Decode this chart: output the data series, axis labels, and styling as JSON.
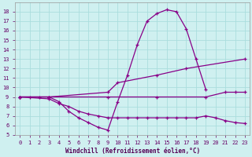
{
  "bg_color": "#cff0f0",
  "grid_color": "#aadddd",
  "line_color": "#880088",
  "xlabel": "Windchill (Refroidissement éolien,°C)",
  "xlim": [
    -0.5,
    23.5
  ],
  "ylim": [
    5,
    19
  ],
  "xticks": [
    0,
    1,
    2,
    3,
    4,
    5,
    6,
    7,
    8,
    9,
    10,
    11,
    12,
    13,
    14,
    15,
    16,
    17,
    18,
    19,
    20,
    21,
    22,
    23
  ],
  "yticks": [
    5,
    6,
    7,
    8,
    9,
    10,
    11,
    12,
    13,
    14,
    15,
    16,
    17,
    18
  ],
  "series": [
    {
      "x": [
        0,
        1,
        2,
        3,
        4,
        5,
        6,
        7,
        8,
        9,
        10,
        11,
        12,
        13,
        14,
        15,
        16,
        17,
        18,
        19
      ],
      "y": [
        9,
        9,
        9,
        9,
        8.5,
        7.5,
        6.8,
        6.3,
        5.8,
        5.5,
        8.5,
        11.3,
        14.5,
        17.0,
        17.8,
        18.2,
        18.0,
        16.2,
        13.0,
        9.8
      ],
      "marker": true
    },
    {
      "x": [
        0,
        3,
        9,
        10,
        14,
        17,
        23
      ],
      "y": [
        9,
        9,
        9.5,
        10.5,
        11.3,
        12.0,
        13.0
      ],
      "marker": true
    },
    {
      "x": [
        0,
        3,
        9,
        14,
        19,
        21,
        22,
        23
      ],
      "y": [
        9,
        9,
        9,
        9,
        9,
        9.5,
        9.5,
        9.5
      ],
      "marker": true
    },
    {
      "x": [
        0,
        3,
        4,
        5,
        6,
        7,
        8,
        9,
        10,
        11,
        12,
        13,
        14,
        15,
        16,
        17,
        18,
        19,
        20,
        21,
        22,
        23
      ],
      "y": [
        9,
        8.8,
        8.3,
        8.0,
        7.5,
        7.2,
        7.0,
        6.8,
        6.8,
        6.8,
        6.8,
        6.8,
        6.8,
        6.8,
        6.8,
        6.8,
        6.8,
        7.0,
        6.8,
        6.5,
        6.3,
        6.2
      ],
      "marker": true
    }
  ]
}
